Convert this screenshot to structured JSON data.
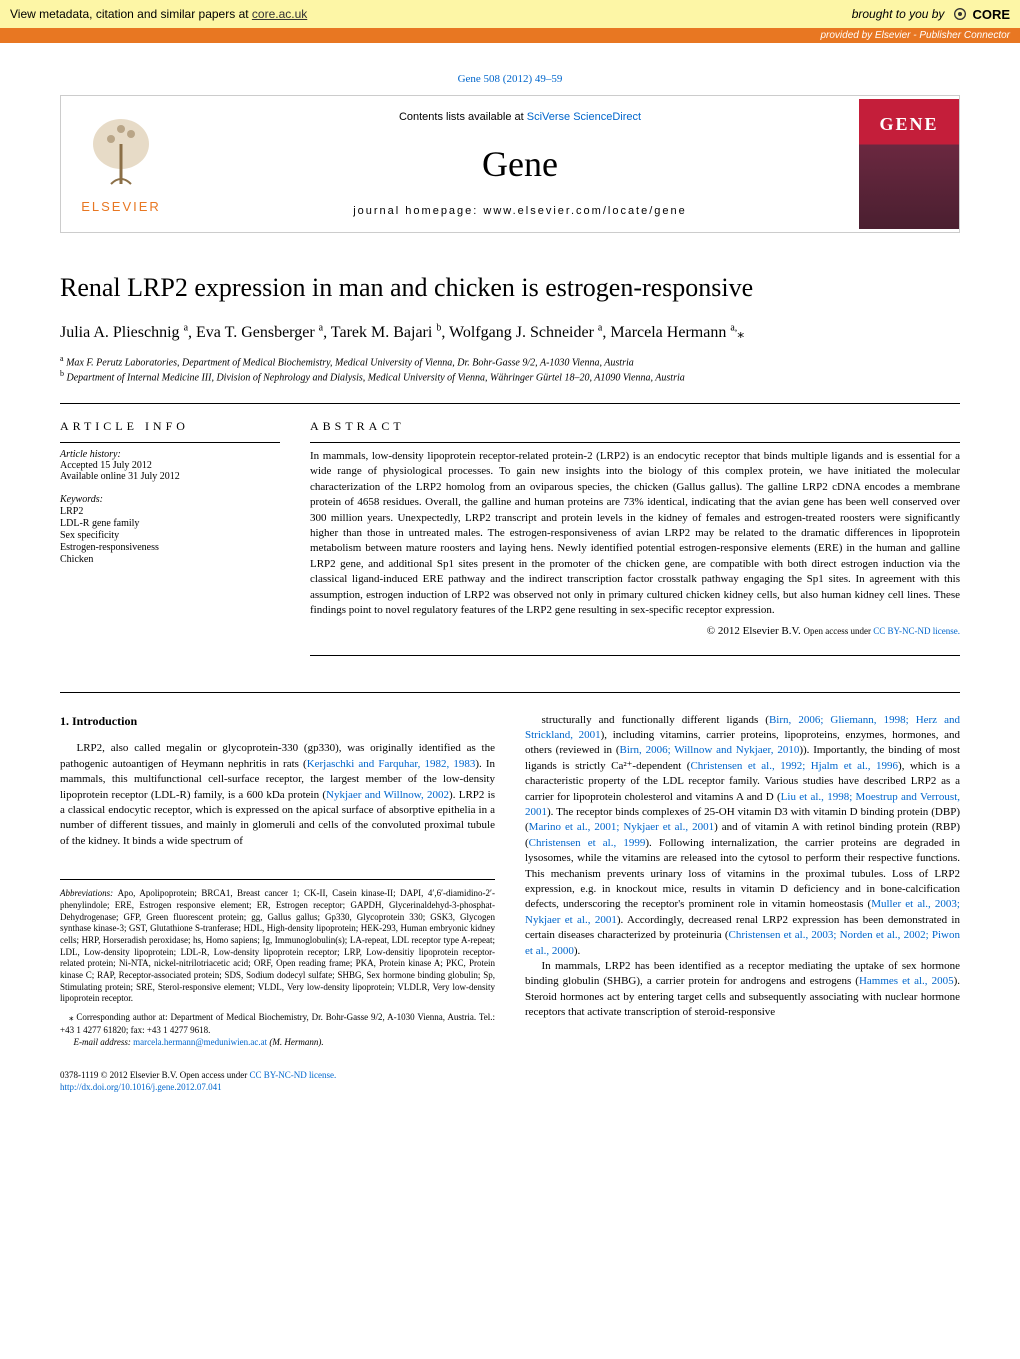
{
  "core_banner": {
    "left_text": "View metadata, citation and similar papers at ",
    "left_link": "core.ac.uk",
    "right_text": "brought to you by",
    "logo_text": "CORE"
  },
  "provided_bar": "provided by Elsevier - Publisher Connector",
  "citation": {
    "text": "Gene 508 (2012) 49–59"
  },
  "journal_header": {
    "elsevier": "ELSEVIER",
    "contents": "Contents lists available at ",
    "contents_link": "SciVerse ScienceDirect",
    "title": "Gene",
    "homepage_label": "journal homepage: ",
    "homepage": "www.elsevier.com/locate/gene",
    "cover_title": "GENE"
  },
  "article": {
    "title": "Renal LRP2 expression in man and chicken is estrogen-responsive",
    "authors_html": "Julia A. Plieschnig <sup>a</sup>, Eva T. Gensberger <sup>a</sup>, Tarek M. Bajari <sup>b</sup>, Wolfgang J. Schneider <sup>a</sup>, Marcela Hermann <sup>a,</sup>",
    "affiliations": [
      {
        "sup": "a",
        "text": "Max F. Perutz Laboratories, Department of Medical Biochemistry, Medical University of Vienna, Dr. Bohr-Gasse 9/2, A-1030 Vienna, Austria"
      },
      {
        "sup": "b",
        "text": "Department of Internal Medicine III, Division of Nephrology and Dialysis, Medical University of Vienna, Währinger Gürtel 18–20, A1090 Vienna, Austria"
      }
    ]
  },
  "article_info": {
    "heading": "article info",
    "history_label": "Article history:",
    "accepted": "Accepted 15 July 2012",
    "online": "Available online 31 July 2012",
    "keywords_label": "Keywords:",
    "keywords": [
      "LRP2",
      "LDL-R gene family",
      "Sex specificity",
      "Estrogen-responsiveness",
      "Chicken"
    ]
  },
  "abstract": {
    "heading": "abstract",
    "text": "In mammals, low-density lipoprotein receptor-related protein-2 (LRP2) is an endocytic receptor that binds multiple ligands and is essential for a wide range of physiological processes. To gain new insights into the biology of this complex protein, we have initiated the molecular characterization of the LRP2 homolog from an oviparous species, the chicken (Gallus gallus). The galline LRP2 cDNA encodes a membrane protein of 4658 residues. Overall, the galline and human proteins are 73% identical, indicating that the avian gene has been well conserved over 300 million years. Unexpectedly, LRP2 transcript and protein levels in the kidney of females and estrogen-treated roosters were significantly higher than those in untreated males. The estrogen-responsiveness of avian LRP2 may be related to the dramatic differences in lipoprotein metabolism between mature roosters and laying hens. Newly identified potential estrogen-responsive elements (ERE) in the human and galline LRP2 gene, and additional Sp1 sites present in the promoter of the chicken gene, are compatible with both direct estrogen induction via the classical ligand-induced ERE pathway and the indirect transcription factor crosstalk pathway engaging the Sp1 sites. In agreement with this assumption, estrogen induction of LRP2 was observed not only in primary cultured chicken kidney cells, but also human kidney cell lines. These findings point to novel regulatory features of the LRP2 gene resulting in sex-specific receptor expression.",
    "copyright": "© 2012 Elsevier B.V. ",
    "license_prefix": "Open access under ",
    "license_link": "CC BY-NC-ND license."
  },
  "introduction": {
    "heading": "1. Introduction",
    "col1_p1": "LRP2, also called megalin or glycoprotein-330 (gp330), was originally identified as the pathogenic autoantigen of Heymann nephritis in rats (Kerjaschki and Farquhar, 1982, 1983). In mammals, this multifunctional cell-surface receptor, the largest member of the low-density lipoprotein receptor (LDL-R) family, is a 600 kDa protein (Nykjaer and Willnow, 2002). LRP2 is a classical endocytic receptor, which is expressed on the apical surface of absorptive epithelia in a number of different tissues, and mainly in glomeruli and cells of the convoluted proximal tubule of the kidney. It binds a wide spectrum of",
    "col2_p1": "structurally and functionally different ligands (Birn, 2006; Gliemann, 1998; Herz and Strickland, 2001), including vitamins, carrier proteins, lipoproteins, enzymes, hormones, and others (reviewed in (Birn, 2006; Willnow and Nykjaer, 2010)). Importantly, the binding of most ligands is strictly Ca²⁺-dependent (Christensen et al., 1992; Hjalm et al., 1996), which is a characteristic property of the LDL receptor family. Various studies have described LRP2 as a carrier for lipoprotein cholesterol and vitamins A and D (Liu et al., 1998; Moestrup and Verroust, 2001). The receptor binds complexes of 25-OH vitamin D3 with vitamin D binding protein (DBP) (Marino et al., 2001; Nykjaer et al., 2001) and of vitamin A with retinol binding protein (RBP) (Christensen et al., 1999). Following internalization, the carrier proteins are degraded in lysosomes, while the vitamins are released into the cytosol to perform their respective functions. This mechanism prevents urinary loss of vitamins in the proximal tubules. Loss of LRP2 expression, e.g. in knockout mice, results in vitamin D deficiency and in bone-calcification defects, underscoring the receptor's prominent role in vitamin homeostasis (Muller et al., 2003; Nykjaer et al., 2001). Accordingly, decreased renal LRP2 expression has been demonstrated in certain diseases characterized by proteinuria (Christensen et al., 2003; Norden et al., 2002; Piwon et al., 2000).",
    "col2_p2": "In mammals, LRP2 has been identified as a receptor mediating the uptake of sex hormone binding globulin (SHBG), a carrier protein for androgens and estrogens (Hammes et al., 2005). Steroid hormones act by entering target cells and subsequently associating with nuclear hormone receptors that activate transcription of steroid-responsive"
  },
  "abbreviations": {
    "label": "Abbreviations: ",
    "text": "Apo, Apolipoprotein; BRCA1, Breast cancer 1; CK-II, Casein kinase-II; DAPI, 4′,6′-diamidino-2′-phenylindole; ERE, Estrogen responsive element; ER, Estrogen receptor; GAPDH, Glycerinaldehyd-3-phosphat-Dehydrogenase; GFP, Green fluorescent protein; gg, Gallus gallus; Gp330, Glycoprotein 330; GSK3, Glycogen synthase kinase-3; GST, Glutathione S-tranferase; HDL, High-density lipoprotein; HEK-293, Human embryonic kidney cells; HRP, Horseradish peroxidase; hs, Homo sapiens; Ig, Immunoglobulin(s); LA-repeat, LDL receptor type A-repeat; LDL, Low-density lipoprotein; LDL-R, Low-density lipoprotein receptor; LRP, Low-densitiy lipoprotein receptor-related protein; Ni-NTA, nickel-nitrilotriacetic acid; ORF, Open reading frame; PKA, Protein kinase A; PKC, Protein kinase C; RAP, Receptor-associated protein; SDS, Sodium dodecyl sulfate; SHBG, Sex hormone binding globulin; Sp, Stimulating protein; SRE, Sterol-responsive element; VLDL, Very low-density lipoprotein; VLDLR, Very low-density lipoprotein receptor."
  },
  "corresponding": {
    "text": "Corresponding author at: Department of Medical Biochemistry, Dr. Bohr-Gasse 9/2, A-1030 Vienna, Austria. Tel.: +43 1 4277 61820; fax: +43 1 4277 9618.",
    "email_label": "E-mail address: ",
    "email": "marcela.hermann@meduniwien.ac.at",
    "email_suffix": " (M. Hermann)."
  },
  "footer": {
    "issn": "0378-1119 © 2012 Elsevier B.V. ",
    "license_prefix": "Open access under ",
    "license_link": "CC BY-NC-ND license.",
    "doi": "http://dx.doi.org/10.1016/j.gene.2012.07.041"
  },
  "colors": {
    "banner_bg": "#fdf6a6",
    "provided_bg": "#e87722",
    "link": "#0066cc",
    "cover_red": "#c41e3a"
  }
}
